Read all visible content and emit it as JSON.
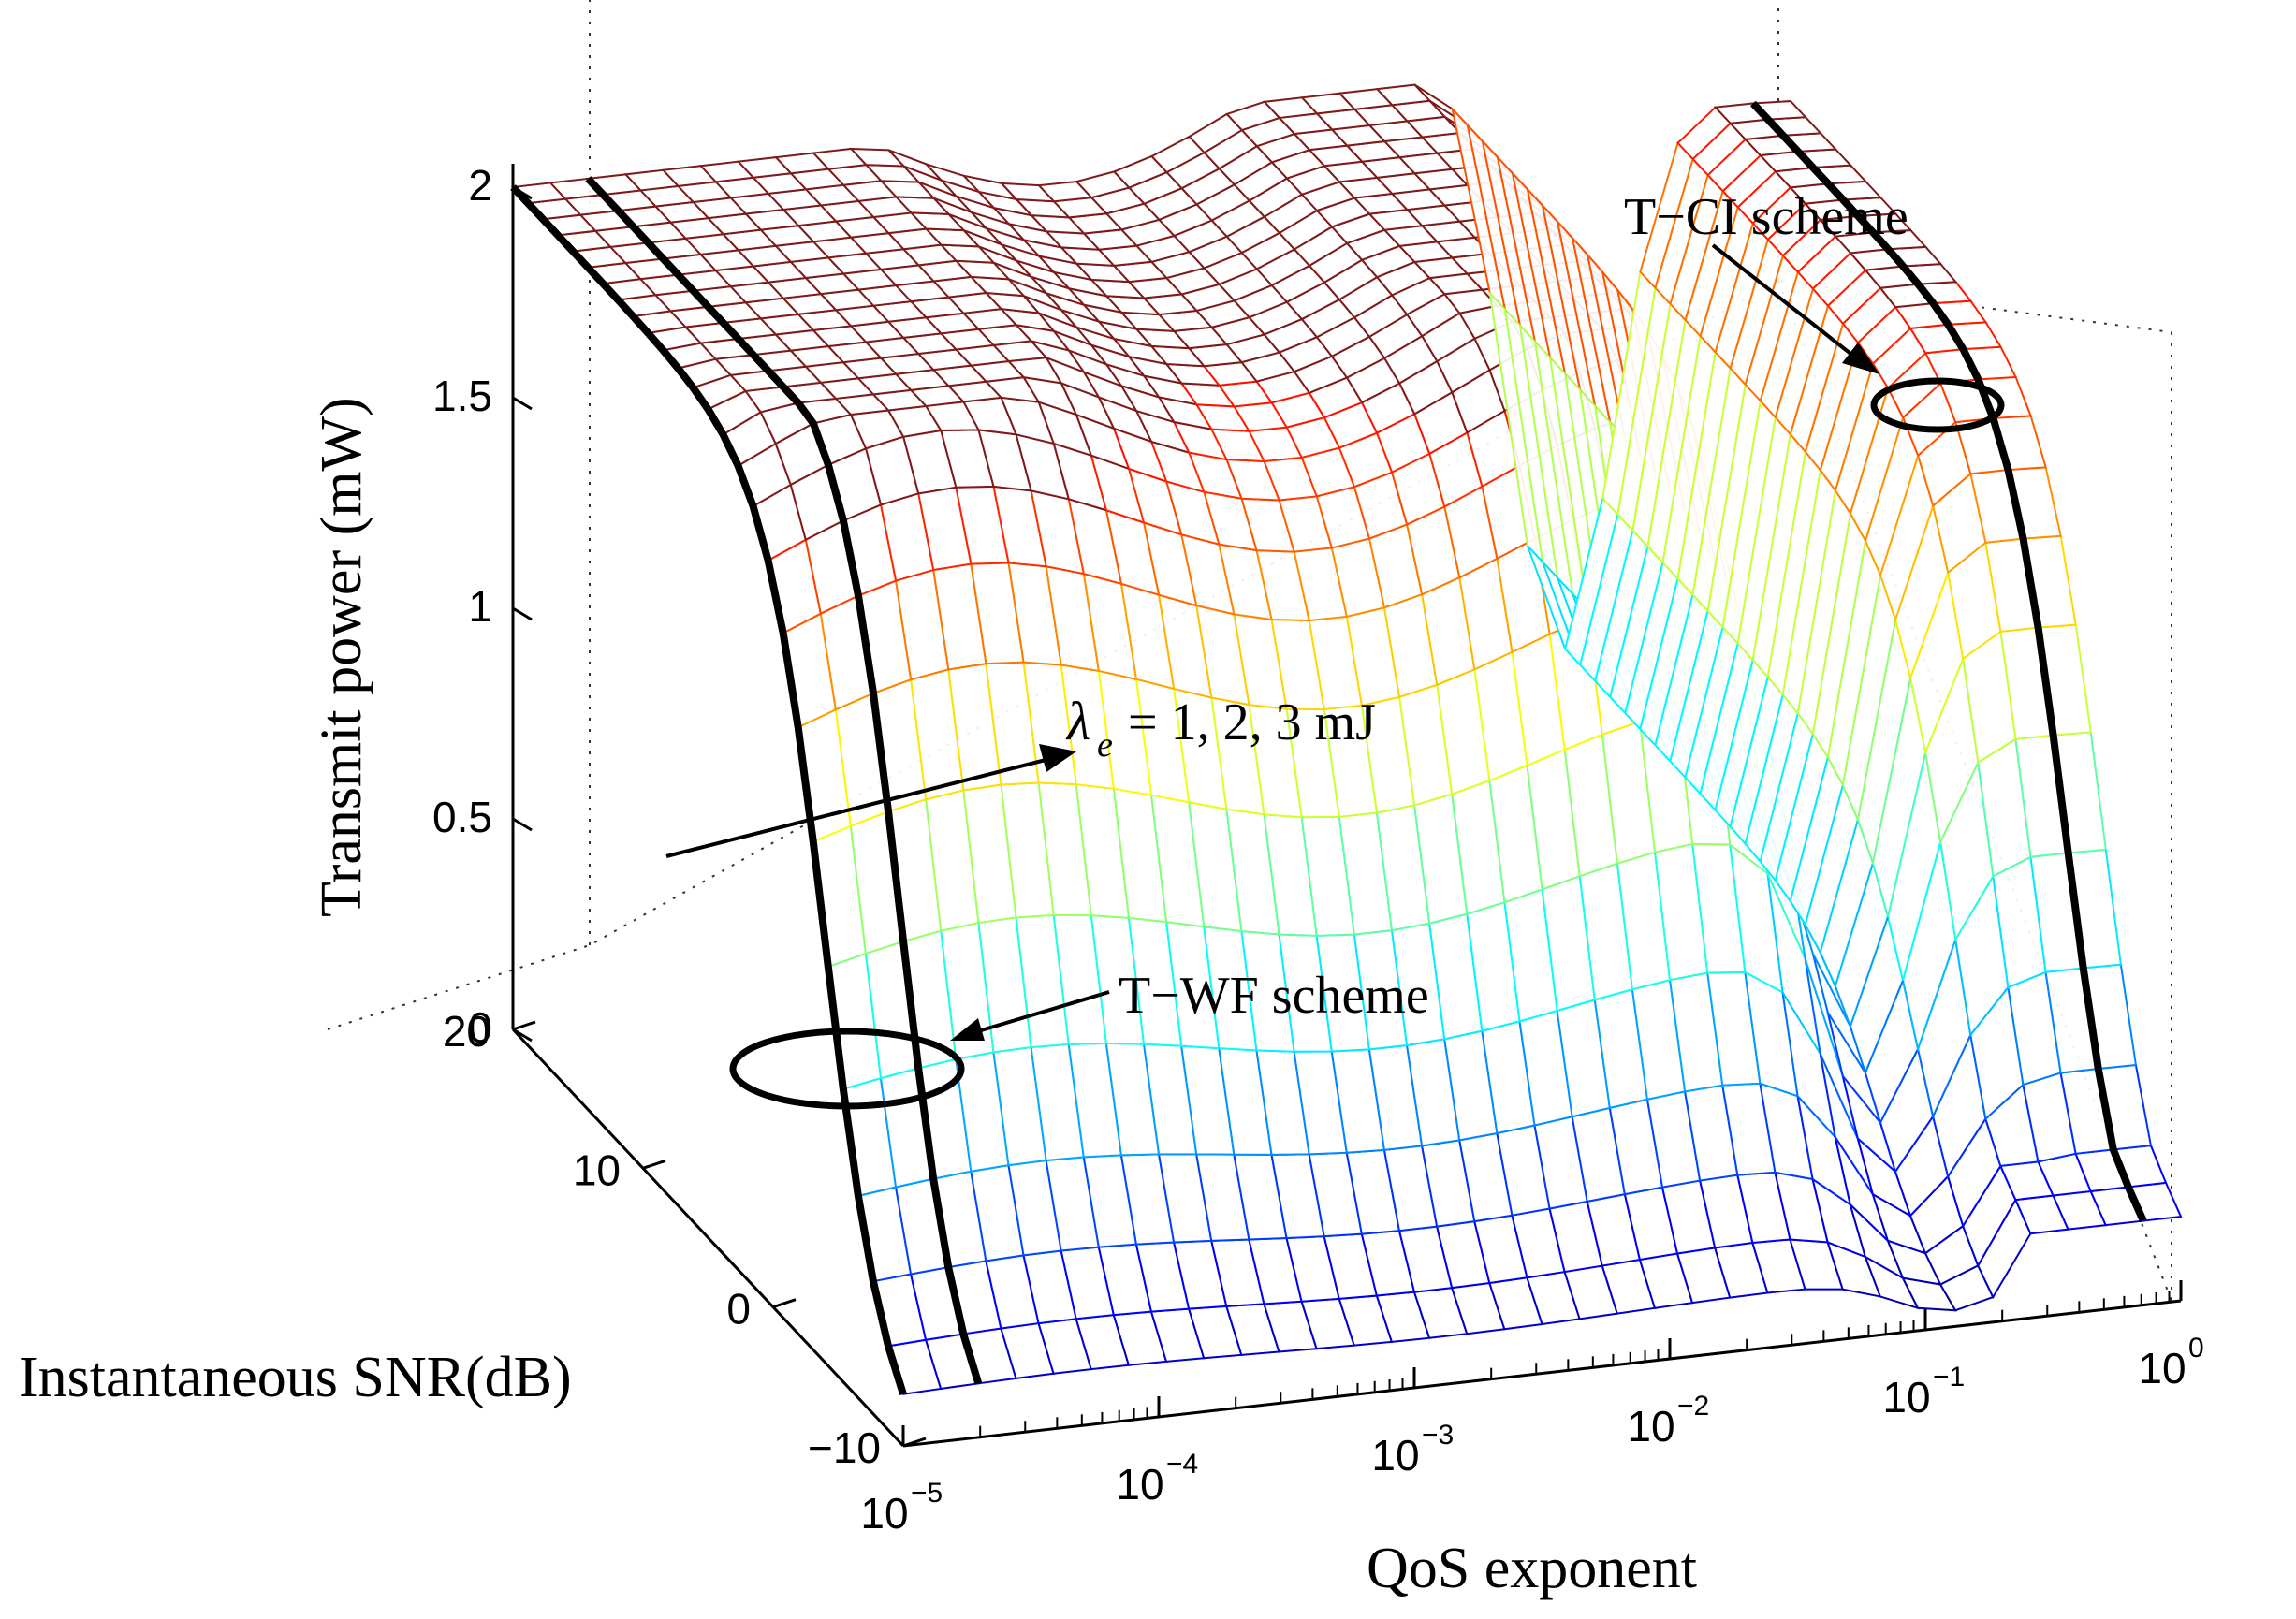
{
  "chart_data": {
    "type": "surface3d",
    "title": "",
    "xlabel": "QoS exponent",
    "ylabel": "Instantaneous SNR(dB)",
    "zlabel": "Transmit power (mW)",
    "x_scale": "log",
    "x_range": [
      1e-05,
      1
    ],
    "x_ticks": [
      {
        "base": "10",
        "exp": "−5"
      },
      {
        "base": "10",
        "exp": "−4"
      },
      {
        "base": "10",
        "exp": "−3"
      },
      {
        "base": "10",
        "exp": "−2"
      },
      {
        "base": "10",
        "exp": "−1"
      },
      {
        "base": "10",
        "exp": "0"
      }
    ],
    "y_range": [
      -10,
      20
    ],
    "y_ticks": [
      "−10",
      "0",
      "10",
      "20"
    ],
    "z_range": [
      0,
      2
    ],
    "z_ticks": [
      "0",
      "0.5",
      "1",
      "1.5",
      "2"
    ],
    "colormap": "jet",
    "peak_color": "#7f1a1a",
    "series": [
      {
        "name": "λe = 1 mJ",
        "plateau_mW": 2.0
      },
      {
        "name": "λe = 2 mJ",
        "plateau_mW": 1.6
      },
      {
        "name": "λe = 3 mJ",
        "plateau_mW": 1.25
      }
    ],
    "annotations": {
      "tci": "T−CI scheme",
      "twf": "T−WF scheme",
      "lambda_sym": "λ",
      "lambda_sub": "e",
      "lambda_rest": "= 1, 2, 3 mJ"
    }
  }
}
